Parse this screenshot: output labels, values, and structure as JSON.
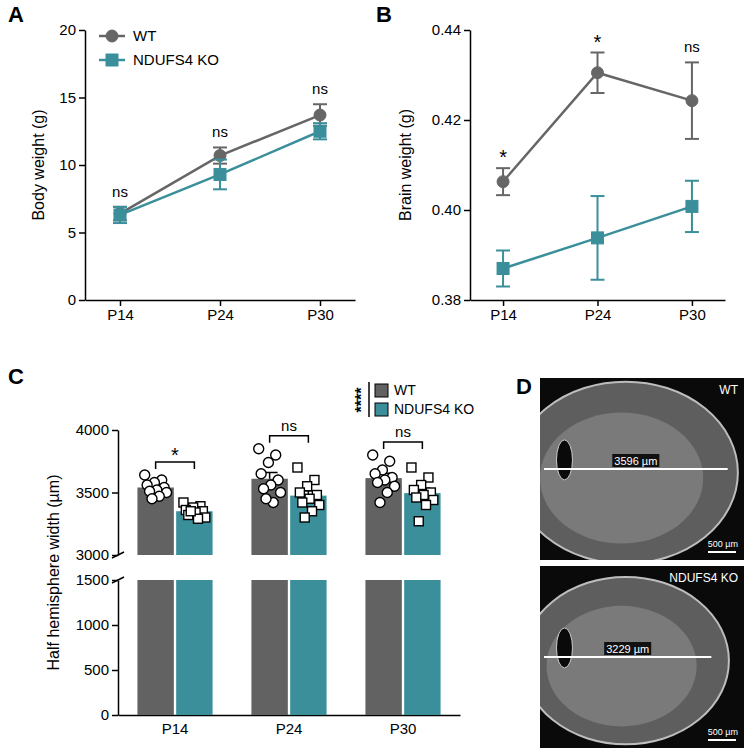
{
  "chart_data": [
    {
      "panel": "A",
      "type": "line",
      "categories": [
        "P14",
        "P24",
        "P30"
      ],
      "y_label": "Body weight (g)",
      "ylim": [
        0,
        20
      ],
      "yticks": [
        0,
        5,
        10,
        15,
        20
      ],
      "legend": "upper left",
      "annotations": [
        "ns",
        "ns",
        "ns"
      ],
      "series": [
        {
          "name": "WT",
          "color": "#666666",
          "marker": "circle",
          "values": [
            6.4,
            10.7,
            13.7
          ],
          "errors": [
            0.5,
            0.6,
            0.8
          ]
        },
        {
          "name": "NDUFS4 KO",
          "color": "#3a8f9b",
          "marker": "square",
          "values": [
            6.3,
            9.3,
            12.5
          ],
          "errors": [
            0.6,
            1.1,
            0.6
          ]
        }
      ]
    },
    {
      "panel": "B",
      "type": "line",
      "categories": [
        "P14",
        "P24",
        "P30"
      ],
      "y_label": "Brain weight (g)",
      "ylim": [
        0.38,
        0.44
      ],
      "yticks": [
        0.38,
        {
          "value": 0.4,
          "label": "0.40"
        },
        0.42,
        0.44
      ],
      "annotations": [
        "*",
        "*",
        "ns"
      ],
      "series": [
        {
          "name": "WT",
          "color": "#666666",
          "marker": "circle",
          "values": [
            0.4063,
            0.4305,
            0.4243
          ],
          "errors": [
            0.003,
            0.0045,
            0.0085
          ]
        },
        {
          "name": "NDUFS4 KO",
          "color": "#3a8f9b",
          "marker": "square",
          "values": [
            0.387,
            0.3938,
            0.4008
          ],
          "errors": [
            0.004,
            0.0093,
            0.0057
          ]
        }
      ]
    },
    {
      "panel": "C",
      "type": "bar",
      "categories": [
        "P14",
        "P24",
        "P30"
      ],
      "y_label": "Half hemisphere width (µm)",
      "ylim": [
        0,
        4000
      ],
      "ybreak": [
        1500,
        3000
      ],
      "yticks": [
        0,
        500,
        1000,
        1500,
        3000,
        3500,
        4000
      ],
      "legend": "upper right",
      "legend_annotation": "****",
      "annotations": [
        "*",
        "ns",
        "ns"
      ],
      "series": [
        {
          "name": "WT",
          "color": "#626262",
          "marker": "circle",
          "values": [
            3540,
            3610,
            3615
          ],
          "errors": [
            35,
            50,
            40
          ],
          "points": [
            [
              3640,
              3600,
              3580,
              3560,
              3540,
              3520,
              3510,
              3500,
              3470,
              3450
            ],
            [
              3850,
              3800,
              3740,
              3650,
              3600,
              3560,
              3530,
              3500,
              3420,
              3450
            ],
            [
              3800,
              3750,
              3680,
              3650,
              3620,
              3600,
              3580,
              3550,
              3500,
              3420
            ]
          ]
        },
        {
          "name": "NDUFS4 KO",
          "color": "#3a8f9b",
          "marker": "square",
          "values": [
            3350,
            3475,
            3495
          ],
          "errors": [
            25,
            40,
            40
          ],
          "points": [
            [
              3420,
              3390,
              3380,
              3360,
              3350,
              3340,
              3320,
              3300,
              3290,
              3350
            ],
            [
              3700,
              3600,
              3550,
              3500,
              3480,
              3450,
              3420,
              3400,
              3350,
              3300
            ],
            [
              3700,
              3620,
              3560,
              3520,
              3500,
              3480,
              3460,
              3440,
              3400,
              3270
            ]
          ]
        }
      ]
    },
    {
      "panel": "D",
      "type": "image",
      "images": [
        {
          "label": "WT",
          "measurement": "3596 µm",
          "scale_bar": "500 µm"
        },
        {
          "label": "NDUFS4 KO",
          "measurement": "3229 µm",
          "scale_bar": "500 µm"
        }
      ]
    }
  ]
}
